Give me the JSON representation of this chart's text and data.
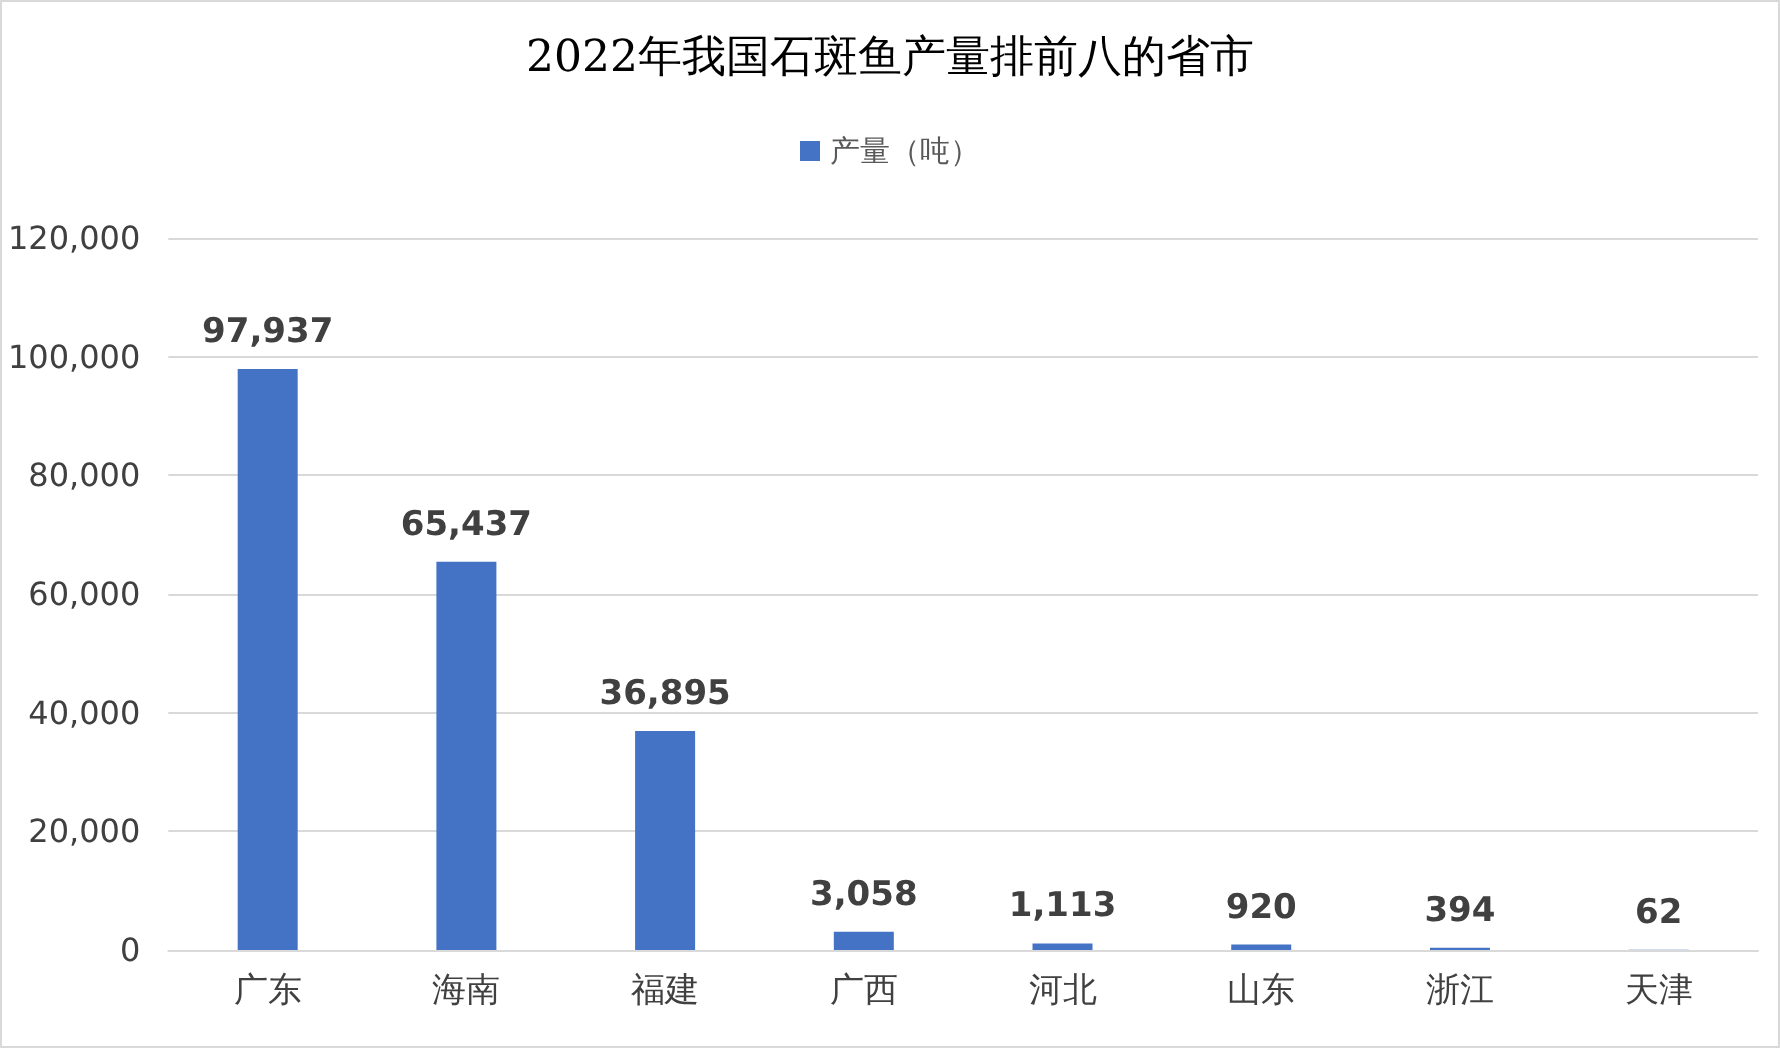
{
  "chart_data": {
    "type": "bar",
    "title": "2022年我国石斑鱼产量排前八的省市",
    "categories": [
      "广东",
      "海南",
      "福建",
      "广西",
      "河北",
      "山东",
      "浙江",
      "天津"
    ],
    "series": [
      {
        "name": "产量（吨）",
        "color": "#4472c4",
        "values": [
          97937,
          65437,
          36895,
          3058,
          1113,
          920,
          394,
          62
        ],
        "value_labels": [
          "97,937",
          "65,437",
          "36,895",
          "3,058",
          "1,113",
          "920",
          "394",
          "62"
        ]
      }
    ],
    "ylim": [
      0,
      120000
    ],
    "yticks": [
      0,
      {
        "value": 20000,
        "label": "20,000"
      },
      {
        "value": 40000,
        "label": "40,000"
      },
      {
        "value": 60000,
        "label": "60,000"
      },
      {
        "value": 80000,
        "label": "80,000"
      },
      {
        "value": 100000,
        "label": "100,000"
      },
      {
        "value": 120000,
        "label": "120,000"
      }
    ],
    "grid": "y",
    "legend": "top"
  }
}
